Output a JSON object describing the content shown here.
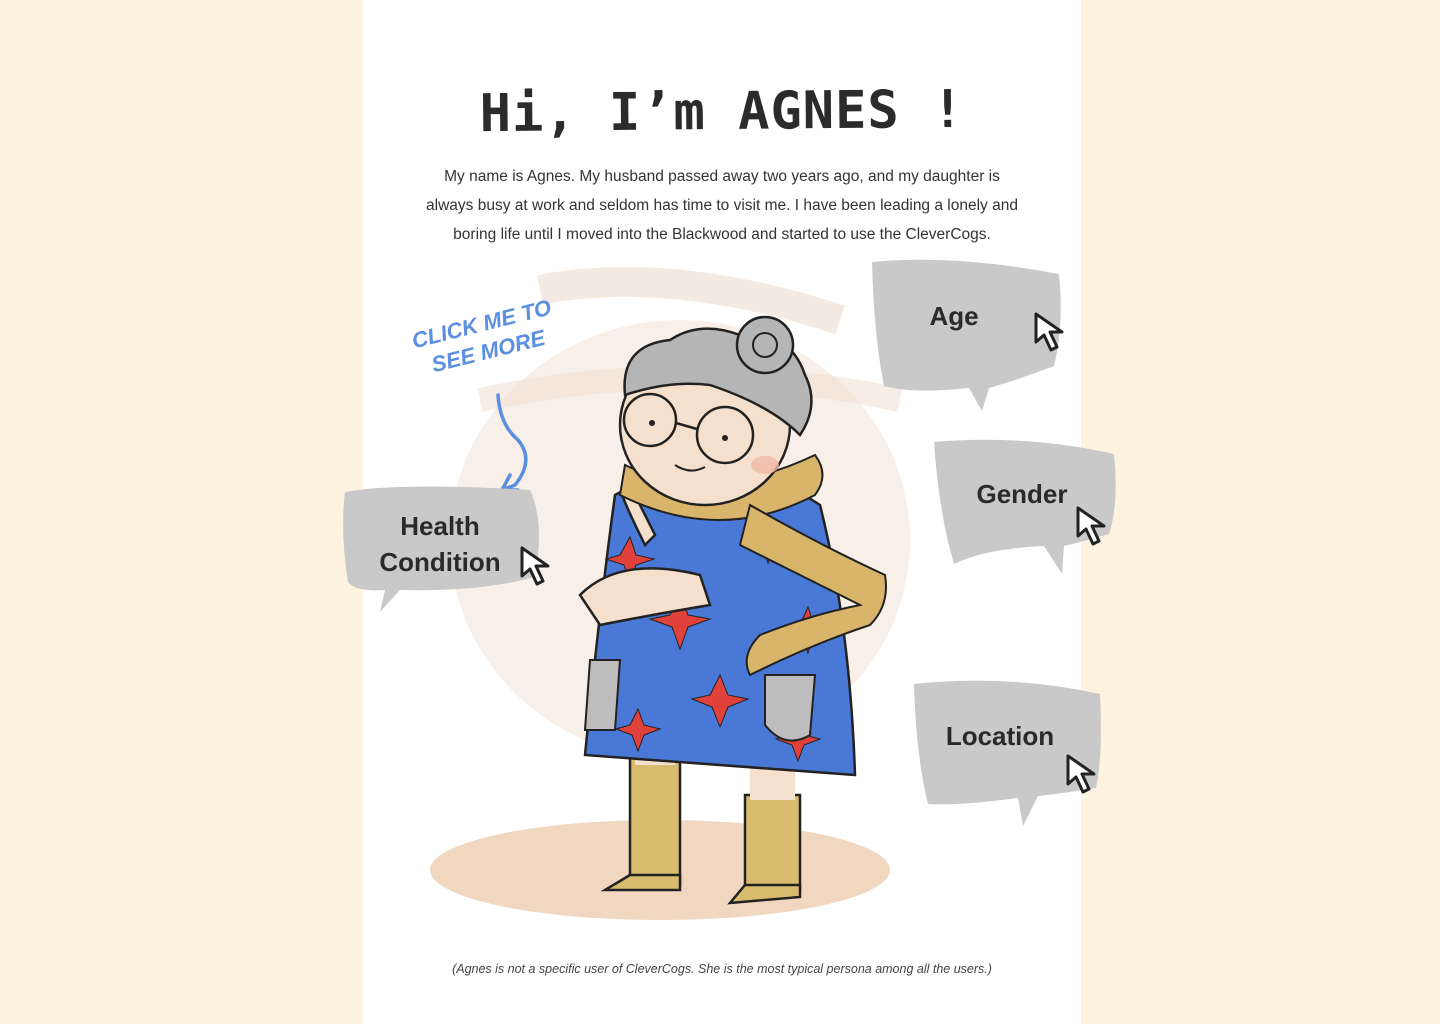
{
  "header": {
    "title": "Hi, I’m AGNES !"
  },
  "intro": {
    "text": "My name is Agnes. My husband passed away two years ago, and my daughter is always busy at work and seldom has time to visit me. I have been leading a lonely and boring life until I moved into the Blackwood and started to use the CleverCogs."
  },
  "hint": {
    "line1": "CLICK ME TO",
    "line2": "SEE MORE",
    "color": "#5b8fe0"
  },
  "bubbles": {
    "health": {
      "line1": "Health",
      "line2": "Condition"
    },
    "age": {
      "label": "Age"
    },
    "gender": {
      "label": "Gender"
    },
    "location": {
      "label": "Location"
    }
  },
  "footnote": {
    "text": "(Agnes is not a specific user of CleverCogs. She is the most typical persona among all the users.)"
  },
  "colors": {
    "background": "#fdf3df",
    "bubble_fill": "#c9c9c9",
    "dress": "#4a78d6",
    "flowers": "#e0413a",
    "scarf": "#d9b46b",
    "boots": "#d8bb6c"
  }
}
